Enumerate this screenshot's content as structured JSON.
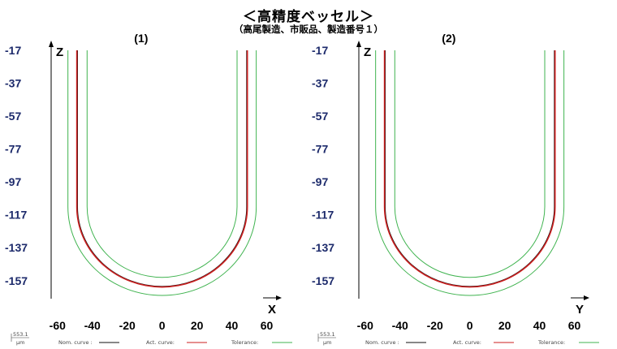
{
  "header": {
    "title": "＜高精度ベッセル＞",
    "subtitle": "（高尾製造、市販品、製造番号１）"
  },
  "colors": {
    "nominal": "#111111",
    "actual": "#cc1f1f",
    "tolerance": "#3fb34f",
    "ytick": "#1c2a6b"
  },
  "chart_data": [
    {
      "type": "line",
      "title": "(1)",
      "xlabel": "X",
      "ylabel": "Z",
      "xlim": [
        -72,
        70
      ],
      "ylim": [
        -165,
        -17
      ],
      "xticks": [
        -60,
        -40,
        -20,
        0,
        20,
        40,
        60
      ],
      "yticks": [
        -17,
        -37,
        -57,
        -77,
        -97,
        -117,
        -137,
        -157
      ],
      "profile": {
        "wall_x": 48.5,
        "bottom_z": -160.5,
        "top_z": -17
      },
      "tolerance_band": 5.5,
      "series": [
        {
          "name": "Nom. curve",
          "role": "nominal"
        },
        {
          "name": "Act. curve",
          "role": "actual"
        },
        {
          "name": "Tolerance",
          "role": "tolerance"
        }
      ],
      "legend": {
        "items": [
          "Nom. curve :",
          "Act. curve:",
          "Tolerance:"
        ],
        "position": "bottom"
      },
      "scale_label": {
        "value": "553.1",
        "unit": "μm"
      }
    },
    {
      "type": "line",
      "title": "(2)",
      "xlabel": "Y",
      "ylabel": "Z",
      "xlim": [
        -72,
        70
      ],
      "ylim": [
        -165,
        -17
      ],
      "xticks": [
        -60,
        -40,
        -20,
        0,
        20,
        40,
        60
      ],
      "yticks": [
        -17,
        -37,
        -57,
        -77,
        -97,
        -117,
        -137,
        -157
      ],
      "profile": {
        "wall_x": 48.5,
        "bottom_z": -160.5,
        "top_z": -17
      },
      "tolerance_band": 5.5,
      "series": [
        {
          "name": "Nom. curve",
          "role": "nominal"
        },
        {
          "name": "Act. curve",
          "role": "actual"
        },
        {
          "name": "Tolerance",
          "role": "tolerance"
        }
      ],
      "legend": {
        "items": [
          "Nom. curve :",
          "Act. curve:",
          "Tolerance:"
        ],
        "position": "bottom"
      },
      "scale_label": {
        "value": "553.1",
        "unit": "μm"
      }
    }
  ]
}
